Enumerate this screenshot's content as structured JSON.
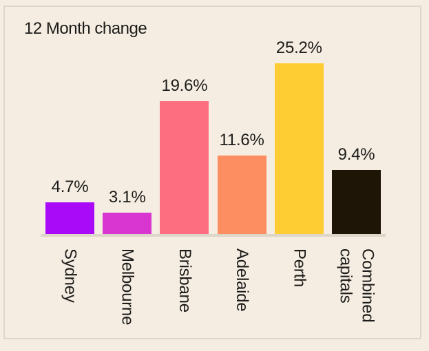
{
  "card": {
    "background_color": "#f5ede2",
    "border_color": "#ddd6c8"
  },
  "chart_data": {
    "type": "bar",
    "title": "12 Month change",
    "categories": [
      "Sydney",
      "Melbourne",
      "Brisbane",
      "Adelaide",
      "Perth",
      "Combined capitals"
    ],
    "values": [
      4.7,
      3.1,
      19.6,
      11.6,
      25.2,
      9.4
    ],
    "value_labels": [
      "4.7%",
      "3.1%",
      "19.6%",
      "11.6%",
      "25.2%",
      "9.4%"
    ],
    "bar_colors": [
      "#a90bf9",
      "#d936d1",
      "#fd6e81",
      "#fd8e62",
      "#fecc33",
      "#1e1507"
    ],
    "xlabel": "",
    "ylabel": "",
    "ylim": [
      0,
      25.2
    ],
    "grid": false,
    "legend": "none",
    "axis_line_color": "#ded7c9",
    "text_color": "#1d1c1a",
    "x_tick_rotation_deg": 90
  }
}
